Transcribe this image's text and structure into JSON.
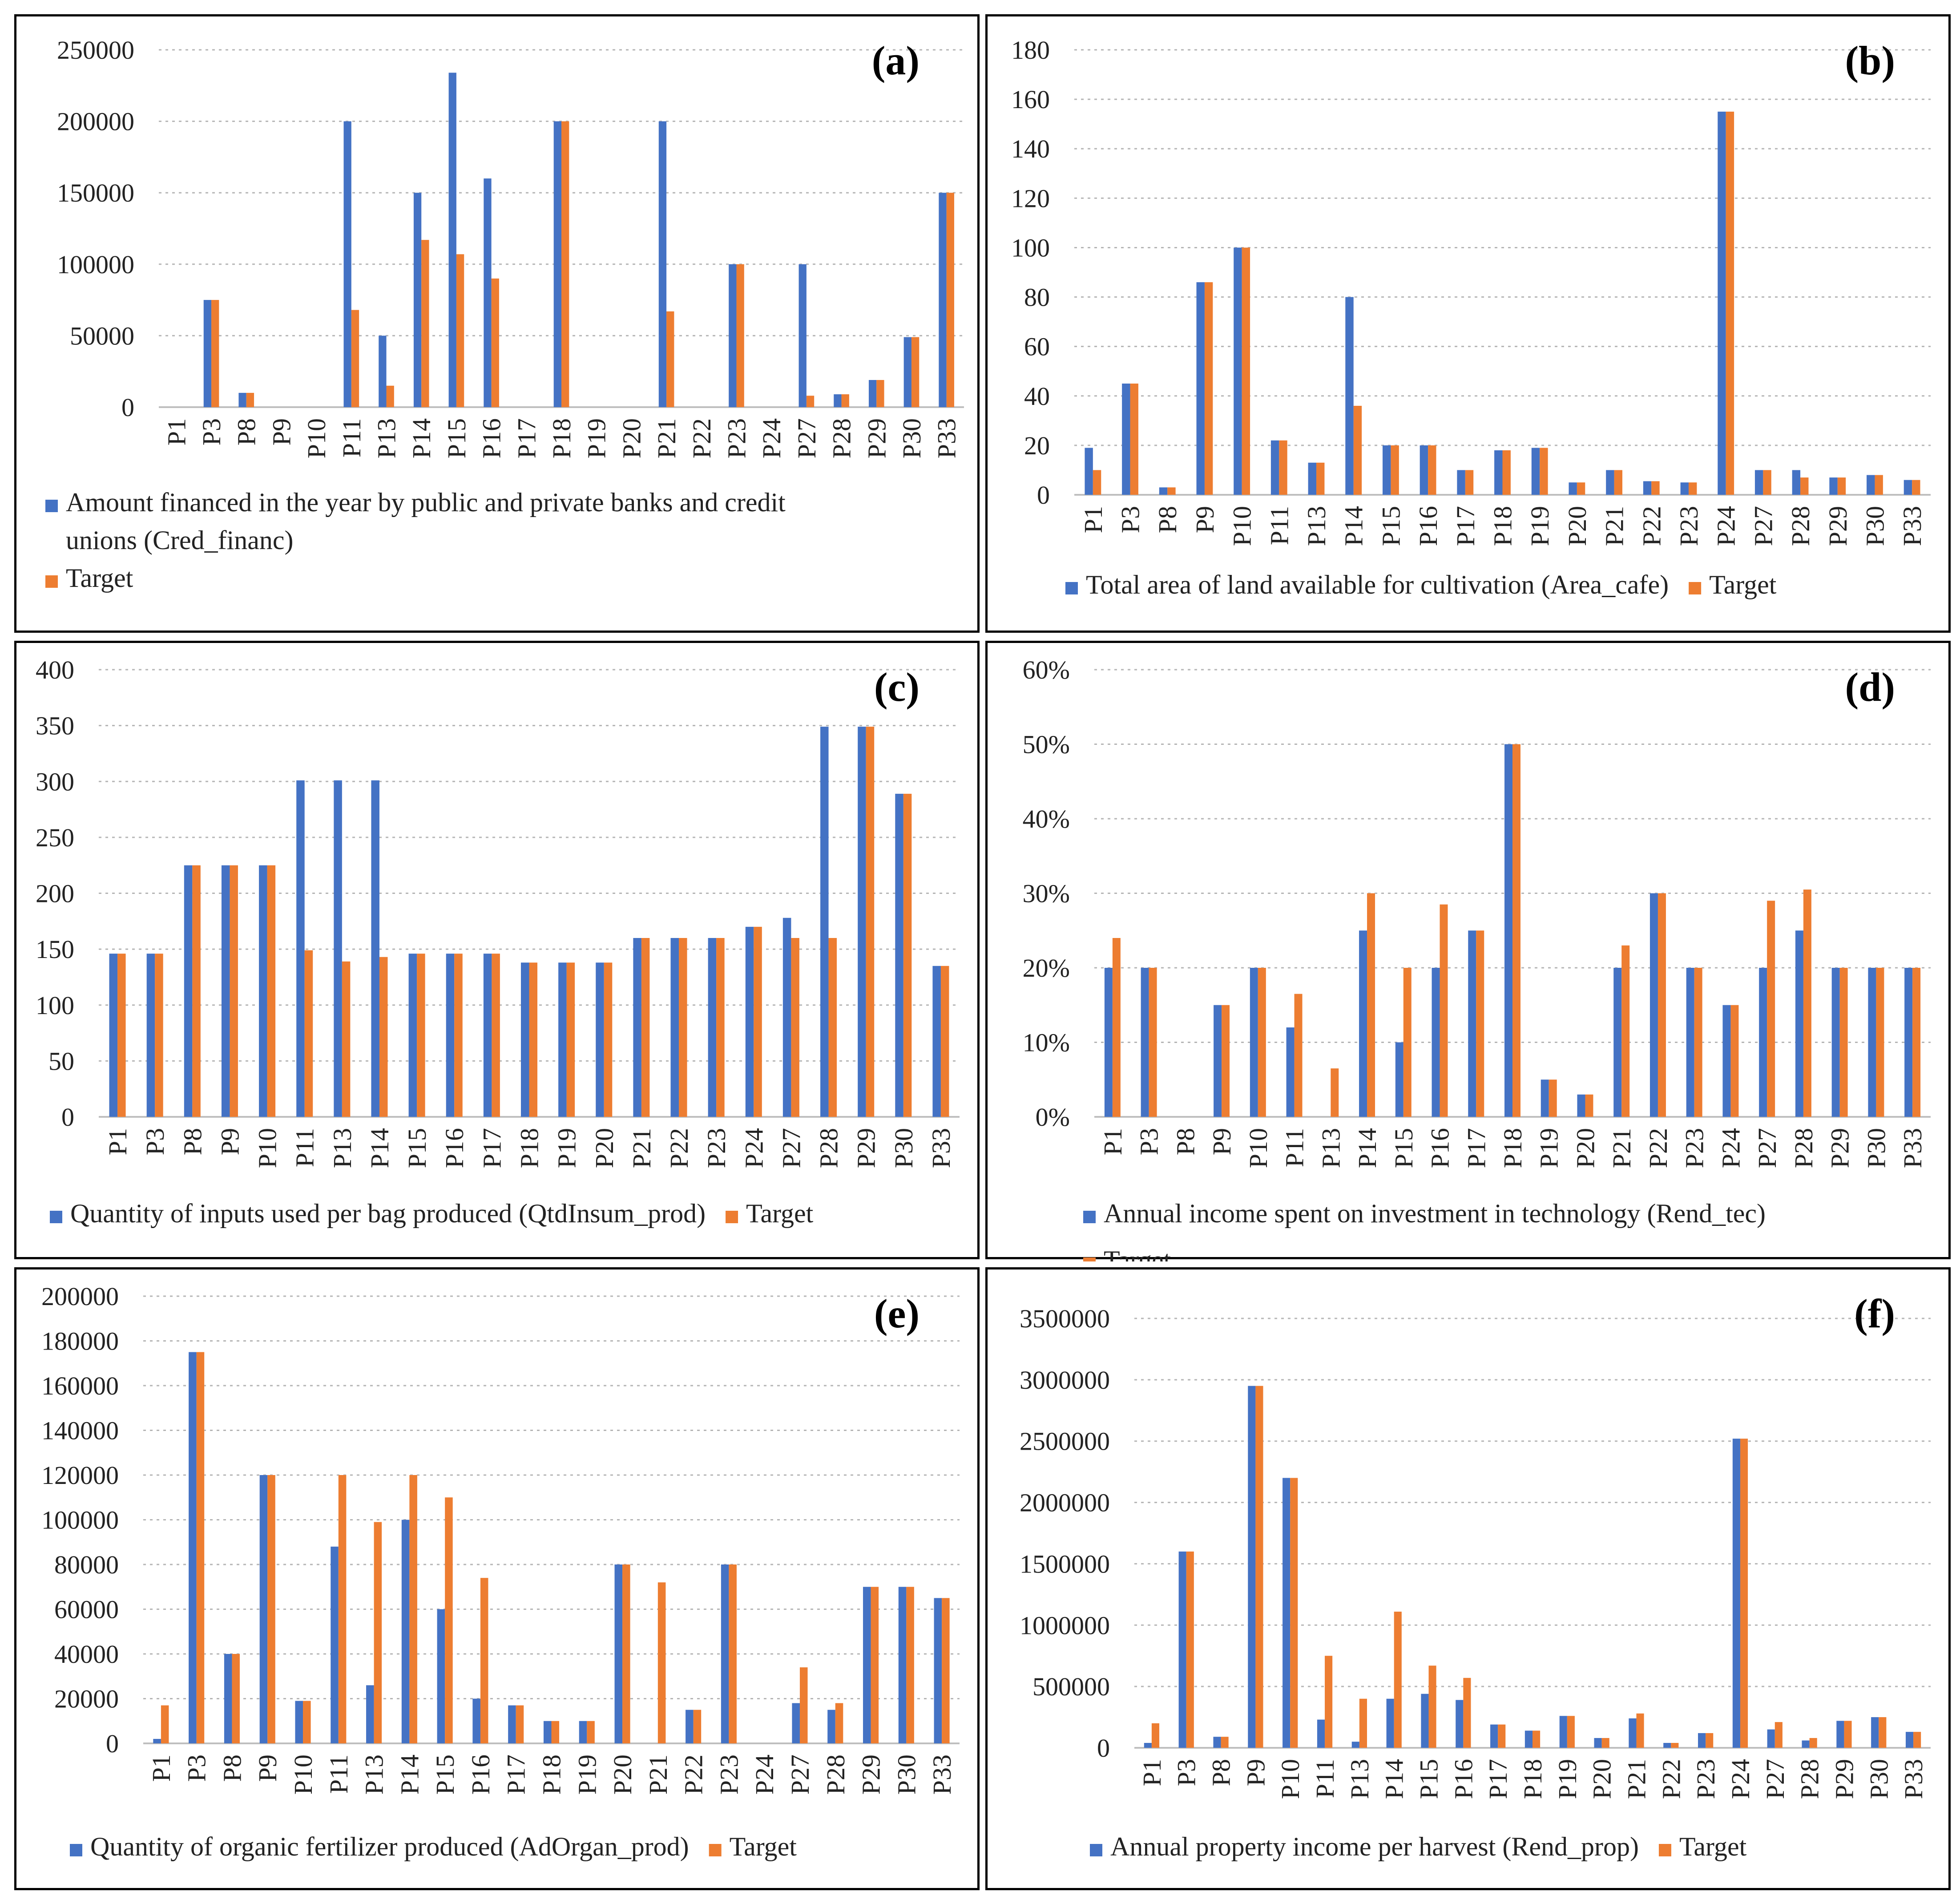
{
  "colors": {
    "series": "#4472C4",
    "target": "#ED7D31",
    "grid": "#B5B5B5",
    "axis": "#BFBFBF"
  },
  "chart_data": [
    {
      "panel": "(a)",
      "type": "bar",
      "categories": [
        "P1",
        "P3",
        "P8",
        "P9",
        "P10",
        "P11",
        "P13",
        "P14",
        "P15",
        "P16",
        "P17",
        "P18",
        "P19",
        "P20",
        "P21",
        "P22",
        "P23",
        "P24",
        "P27",
        "P28",
        "P29",
        "P30",
        "P33"
      ],
      "series": [
        {
          "name": "Amount financed in the year by public and private banks and credit unions (Cred_financ)",
          "values": [
            0,
            75000,
            10000,
            0,
            0,
            200000,
            50000,
            150000,
            234000,
            160000,
            0,
            200000,
            0,
            0,
            200000,
            0,
            100000,
            0,
            100000,
            9000,
            19000,
            49000,
            150000
          ]
        },
        {
          "name": "Target",
          "values": [
            0,
            75000,
            10000,
            0,
            0,
            68000,
            15000,
            117000,
            107000,
            90000,
            0,
            200000,
            0,
            0,
            67000,
            0,
            100000,
            0,
            8000,
            9000,
            19000,
            49000,
            150000
          ]
        }
      ],
      "ylim": [
        0,
        250000
      ],
      "yticks": [
        "0",
        "50000",
        "100000",
        "150000",
        "200000",
        "250000"
      ],
      "legend": [
        "Amount financed in the year by public and private banks and credit",
        "unions (Cred_financ)",
        "Target"
      ]
    },
    {
      "panel": "(b)",
      "type": "bar",
      "categories": [
        "P1",
        "P3",
        "P8",
        "P9",
        "P10",
        "P11",
        "P13",
        "P14",
        "P15",
        "P16",
        "P17",
        "P18",
        "P19",
        "P20",
        "P21",
        "P22",
        "P23",
        "P24",
        "P27",
        "P28",
        "P29",
        "P30",
        "P33"
      ],
      "series": [
        {
          "name": "Total area of land available for cultivation (Area_cafe)",
          "values": [
            19,
            45,
            3,
            86,
            100,
            22,
            13,
            80,
            20,
            20,
            10,
            18,
            19,
            5,
            10,
            5.5,
            5,
            155,
            10,
            10,
            7,
            8,
            6
          ]
        },
        {
          "name": "Target",
          "values": [
            10,
            45,
            3,
            86,
            100,
            22,
            13,
            36,
            20,
            20,
            10,
            18,
            19,
            5,
            10,
            5.5,
            5,
            155,
            10,
            7,
            7,
            8,
            6
          ]
        }
      ],
      "ylim": [
        0,
        180
      ],
      "yticks": [
        "0",
        "20",
        "40",
        "60",
        "80",
        "100",
        "120",
        "140",
        "160",
        "180"
      ],
      "legend": [
        "Total area of land available for cultivation (Area_cafe)",
        "Target"
      ]
    },
    {
      "panel": "(c)",
      "type": "bar",
      "categories": [
        "P1",
        "P3",
        "P8",
        "P9",
        "P10",
        "P11",
        "P13",
        "P14",
        "P15",
        "P16",
        "P17",
        "P18",
        "P19",
        "P20",
        "P21",
        "P22",
        "P23",
        "P24",
        "P27",
        "P28",
        "P29",
        "P30",
        "P33"
      ],
      "series": [
        {
          "name": "Quantity of inputs used per bag produced (QtdInsum_prod)",
          "values": [
            146,
            146,
            225,
            225,
            225,
            301,
            301,
            301,
            146,
            146,
            146,
            138,
            138,
            138,
            160,
            160,
            160,
            170,
            178,
            349,
            349,
            289,
            135
          ]
        },
        {
          "name": "Target",
          "values": [
            146,
            146,
            225,
            225,
            225,
            149,
            139,
            143,
            146,
            146,
            146,
            138,
            138,
            138,
            160,
            160,
            160,
            170,
            160,
            160,
            349,
            289,
            135
          ]
        }
      ],
      "ylim": [
        0,
        400
      ],
      "yticks": [
        "0",
        "50",
        "100",
        "150",
        "200",
        "250",
        "300",
        "350",
        "400"
      ],
      "legend": [
        "Quantity of inputs used per bag produced (QtdInsum_prod)",
        "Target"
      ]
    },
    {
      "panel": "(d)",
      "type": "bar",
      "categories": [
        "P1",
        "P3",
        "P8",
        "P9",
        "P10",
        "P11",
        "P13",
        "P14",
        "P15",
        "P16",
        "P17",
        "P18",
        "P19",
        "P20",
        "P21",
        "P22",
        "P23",
        "P24",
        "P27",
        "P28",
        "P29",
        "P30",
        "P33"
      ],
      "series": [
        {
          "name": "Annual income spent on investment in technology (Rend_tec)",
          "values": [
            0.2,
            0.2,
            0,
            0.15,
            0.2,
            0.12,
            0,
            0.25,
            0.1,
            0.2,
            0.25,
            0.5,
            0.05,
            0.03,
            0.2,
            0.3,
            0.2,
            0.15,
            0.2,
            0.25,
            0.2,
            0.2,
            0.2
          ]
        },
        {
          "name": "Target",
          "values": [
            0.24,
            0.2,
            0,
            0.15,
            0.2,
            0.165,
            0.065,
            0.3,
            0.2,
            0.285,
            0.25,
            0.5,
            0.05,
            0.03,
            0.23,
            0.3,
            0.2,
            0.15,
            0.29,
            0.305,
            0.2,
            0.2,
            0.2
          ]
        }
      ],
      "ylim": [
        0,
        0.6
      ],
      "yticks": [
        "0%",
        "10%",
        "20%",
        "30%",
        "40%",
        "50%",
        "60%"
      ],
      "legend": [
        "Annual income spent on investment in technology (Rend_tec)",
        "Target"
      ]
    },
    {
      "panel": "(e)",
      "type": "bar",
      "categories": [
        "P1",
        "P3",
        "P8",
        "P9",
        "P10",
        "P11",
        "P13",
        "P14",
        "P15",
        "P16",
        "P17",
        "P18",
        "P19",
        "P20",
        "P21",
        "P22",
        "P23",
        "P24",
        "P27",
        "P28",
        "P29",
        "P30",
        "P33"
      ],
      "series": [
        {
          "name": "Quantity of organic fertilizer produced (AdOrgan_prod)",
          "values": [
            2000,
            175000,
            40000,
            120000,
            19000,
            88000,
            26000,
            100000,
            60000,
            20000,
            17000,
            10000,
            10000,
            80000,
            0,
            15000,
            80000,
            0,
            18000,
            15000,
            70000,
            70000,
            65000
          ]
        },
        {
          "name": "Target",
          "values": [
            17000,
            175000,
            40000,
            120000,
            19000,
            120000,
            99000,
            120000,
            110000,
            74000,
            17000,
            10000,
            10000,
            80000,
            72000,
            15000,
            80000,
            0,
            34000,
            18000,
            70000,
            70000,
            65000
          ]
        }
      ],
      "ylim": [
        0,
        200000
      ],
      "yticks": [
        "0",
        "20000",
        "40000",
        "60000",
        "80000",
        "100000",
        "120000",
        "140000",
        "160000",
        "180000",
        "200000"
      ],
      "legend": [
        "Quantity of organic fertilizer produced (AdOrgan_prod)",
        "Target"
      ]
    },
    {
      "panel": "(f)",
      "type": "bar",
      "categories": [
        "P1",
        "P3",
        "P8",
        "P9",
        "P10",
        "P11",
        "P13",
        "P14",
        "P15",
        "P16",
        "P17",
        "P18",
        "P19",
        "P20",
        "P21",
        "P22",
        "P23",
        "P24",
        "P27",
        "P28",
        "P29",
        "P30",
        "P33"
      ],
      "series": [
        {
          "name": "Annual property income per harvest (Rend_prop)",
          "values": [
            40000,
            1600000,
            90000,
            2950000,
            2200000,
            230000,
            50000,
            400000,
            440000,
            390000,
            190000,
            140000,
            260000,
            80000,
            240000,
            40000,
            120000,
            2520000,
            150000,
            60000,
            220000,
            250000,
            130000
          ]
        },
        {
          "name": "Target",
          "values": [
            200000,
            1600000,
            90000,
            2950000,
            2200000,
            750000,
            400000,
            1110000,
            670000,
            570000,
            190000,
            140000,
            260000,
            80000,
            280000,
            40000,
            120000,
            2520000,
            210000,
            80000,
            220000,
            250000,
            130000
          ]
        }
      ],
      "ylim": [
        0,
        3500000
      ],
      "yticks": [
        "0",
        "500000",
        "1000000",
        "1500000",
        "2000000",
        "2500000",
        "3000000",
        "3500000"
      ],
      "legend": [
        "Annual property income per harvest (Rend_prop)",
        "Target"
      ]
    }
  ]
}
